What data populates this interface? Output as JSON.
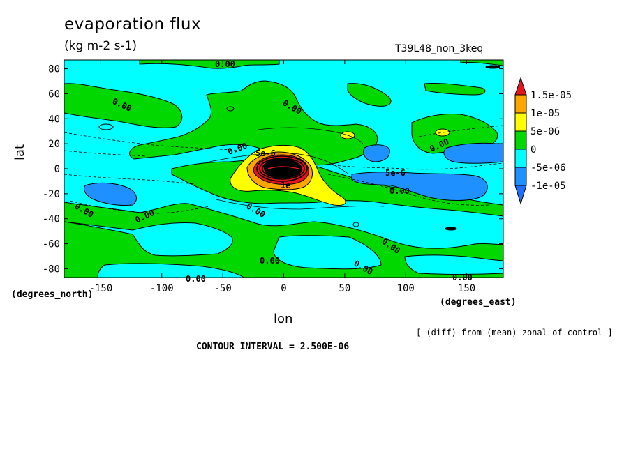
{
  "chart_data": {
    "type": "heatmap",
    "title": "evaporation flux",
    "units": "(kg m-2 s-1)",
    "run_label": "T39L48_non_3keq",
    "xlabel": "lon",
    "ylabel": "lat",
    "x_unit_label": "(degrees_east)",
    "y_unit_label": "(degrees_north)",
    "xlim": [
      -180,
      180
    ],
    "ylim": [
      -87,
      87
    ],
    "x_ticks": [
      -150,
      -100,
      -50,
      0,
      50,
      100,
      150
    ],
    "x_tick_labels": [
      "-150",
      "-100",
      "-50",
      "0",
      "50",
      "100",
      "150"
    ],
    "y_ticks": [
      -80,
      -60,
      -40,
      -20,
      0,
      20,
      40,
      60,
      80
    ],
    "y_tick_labels": [
      "-80",
      "-60",
      "-40",
      "-20",
      "0",
      "20",
      "40",
      "60",
      "80"
    ],
    "note": "[ (diff) from (mean) zonal of control ]",
    "contour_interval_text": "CONTOUR INTERVAL = 2.500E-06",
    "colorbar": {
      "labels": [
        "1.5e-05",
        "1e-05",
        "5e-06",
        "0",
        "-5e-06",
        "-1e-05"
      ],
      "colors": [
        "#e8141c",
        "#ffa500",
        "#ffff00",
        "#00d800",
        "#00ffff",
        "#1e90ff",
        "#1e6eff"
      ]
    },
    "contour_labels": [
      "0.00",
      "0.00",
      "0.00",
      "0.00",
      "0.00",
      "0.00",
      "0.00",
      "0.00",
      "0.00",
      "0.00",
      "0.00",
      "0.00",
      "5e-6",
      "5e-6",
      "1e"
    ],
    "legend": "right",
    "grid": false
  }
}
